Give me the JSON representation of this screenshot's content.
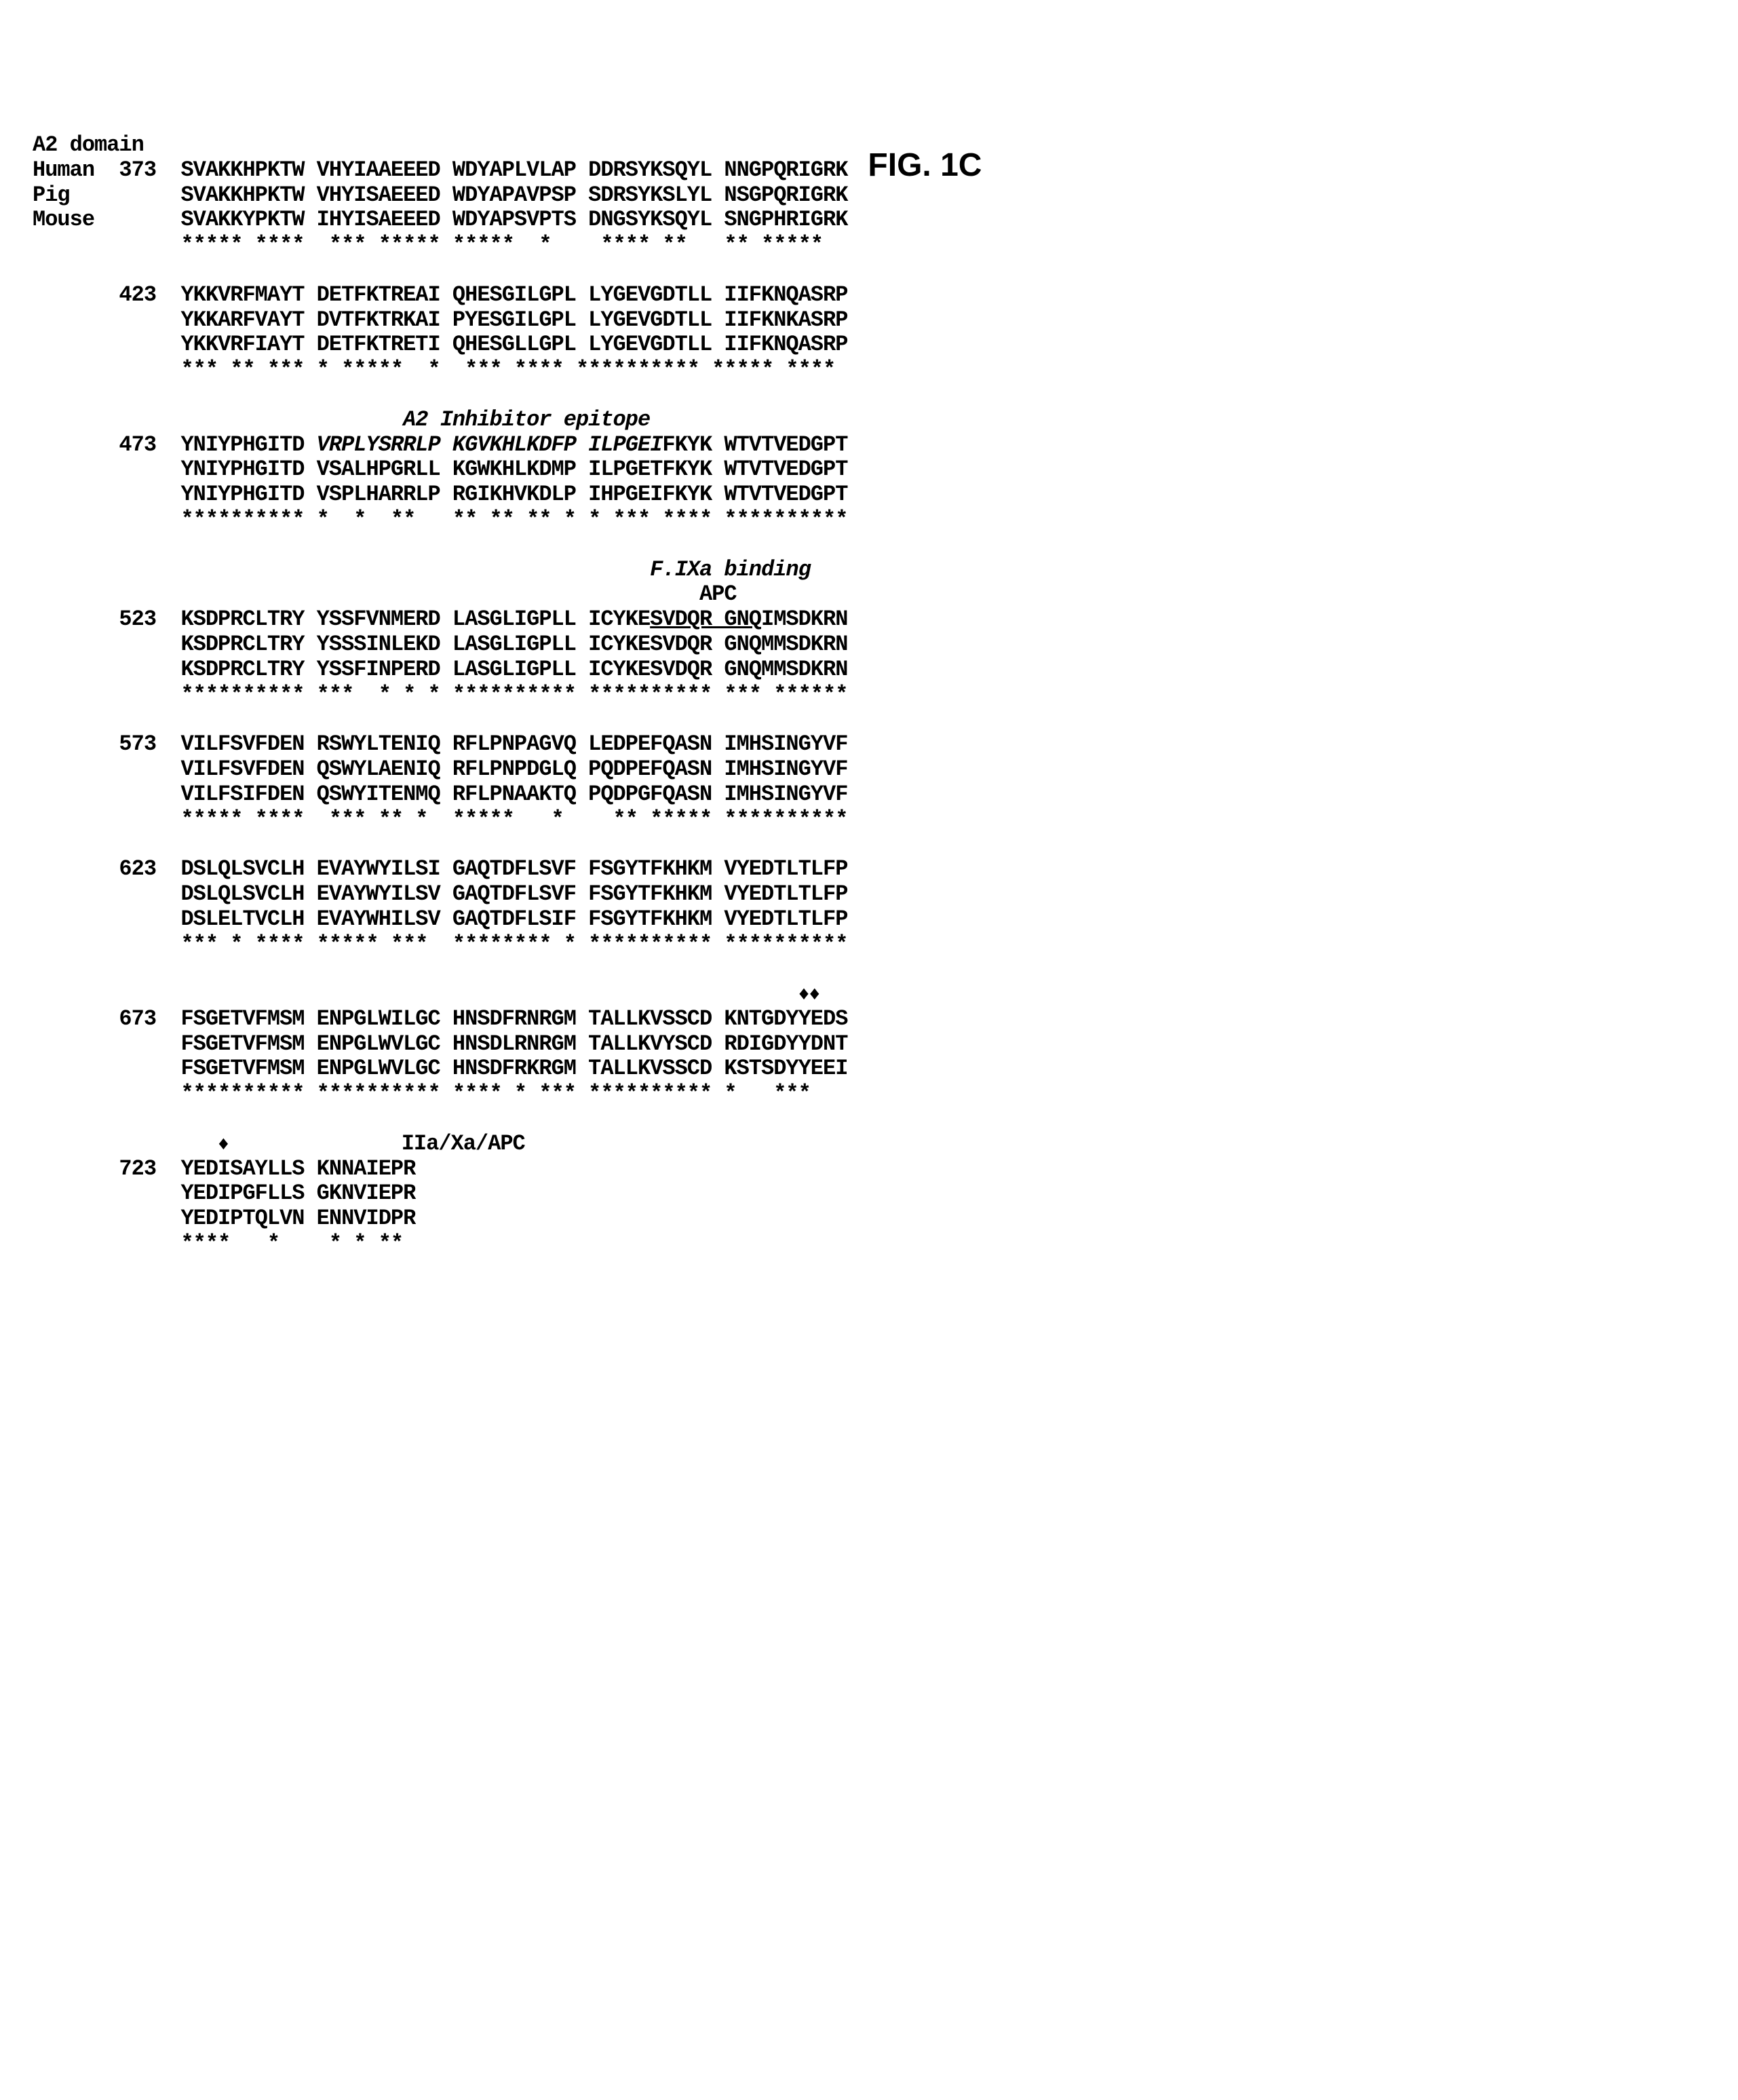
{
  "fig_label": "FIG. 1C",
  "header_domain": "A2 domain",
  "species": [
    "Human",
    "Pig",
    "Mouse"
  ],
  "blocks": [
    {
      "start": "373",
      "rows": [
        "SVAKKHPKTW VHYIAAEEED WDYAPLVLAP DDRSYKSQYL NNGPQRIGRK",
        "SVAKKHPKTW VHYISAEEED WDYAPAVPSP SDRSYKSLYL NSGPQRIGRK",
        "SVAKKYPKTW IHYISAEEED WDYAPSVPTS DNGSYKSQYL SNGPHRIGRK"
      ],
      "cons": "***** ****  *** ***** *****  *    **** **   ** *****"
    },
    {
      "start": "423",
      "rows": [
        "YKKVRFMAYT DETFKTREAI QHESGILGPL LYGEVGDTLL IIFKNQASRP",
        "YKKARFVAYT DVTFKTRKAI PYESGILGPL LYGEVGDTLL IIFKNKASRP",
        "YKKVRFIAYT DETFKTRETI QHESGLLGPL LYGEVGDTLL IIFKNQASRP"
      ],
      "cons": "*** ** *** * *****  *  *** **** ********** ***** ****"
    },
    {
      "start": "473",
      "annotation_top": "A2 Inhibitor epitope",
      "rows_special": [
        {
          "prefix": "YNIYPHGITD ",
          "italic": "VRPLYSRRLP KGVKHLKDFP ILPGEI",
          "suffix": "FKYK WTVTVEDGPT"
        },
        {
          "text": "YNIYPHGITD VSALHPGRLL KGWKHLKDMP ILPGETFKYK WTVTVEDGPT"
        },
        {
          "text": "YNIYPHGITD VSPLHARRLP RGIKHVKDLP IHPGEIFKYK WTVTVEDGPT"
        }
      ],
      "cons": "********** *  *  **   ** ** ** * * *** **** **********"
    },
    {
      "start": "523",
      "annotation_top_right": "F.IXa binding",
      "annotation_top_right2": "APC",
      "rows_special": [
        {
          "prefix": "KSDPRCLTRY YSSFVNMERD LASGLIGPLL ICYKE",
          "underline": "SVDQR GNQ",
          "suffix": "IMSDKRN"
        },
        {
          "text": "KSDPRCLTRY YSSSINLEKD LASGLIGPLL ICYKESVDQR GNQMMSDKRN"
        },
        {
          "text": "KSDPRCLTRY YSSFINPERD LASGLIGPLL ICYKESVDQR GNQMMSDKRN"
        }
      ],
      "cons": "********** ***  * * * ********** ********** *** ******"
    },
    {
      "start": "573",
      "rows": [
        "VILFSVFDEN RSWYLTENIQ RFLPNPAGVQ LEDPEFQASN IMHSINGYVF",
        "VILFSVFDEN QSWYLAENIQ RFLPNPDGLQ PQDPEFQASN IMHSINGYVF",
        "VILFSIFDEN QSWYITENMQ RFLPNAAKTQ PQDPGFQASN IMHSINGYVF"
      ],
      "cons": "***** ****  *** ** *  *****   *    ** ***** **********"
    },
    {
      "start": "623",
      "rows": [
        "DSLQLSVCLH EVAYWYILSI GAQTDFLSVF FSGYTFKHKM VYEDTLTLFP",
        "DSLQLSVCLH EVAYWYILSV GAQTDFLSVF FSGYTFKHKM VYEDTLTLFP",
        "DSLELTVCLH EVAYWHILSV GAQTDFLSIF FSGYTFKHKM VYEDTLTLFP"
      ],
      "cons": "*** * **** ***** ***  ******** * ********** **********"
    },
    {
      "start": "673",
      "annotation_diamonds_right": "♦♦",
      "rows": [
        "FSGETVFMSM ENPGLWILGC HNSDFRNRGM TALLKVSSCD KNTGDYYEDS",
        "FSGETVFMSM ENPGLWVLGC HNSDLRNRGM TALLKVYSCD RDIGDYYDNT",
        "FSGETVFMSM ENPGLWVLGC HNSDFRKRGM TALLKVSSCD KSTSDYYEEI"
      ],
      "cons": "********** ********** **** * *** ********** *   ***"
    },
    {
      "start": "723",
      "annotation_diamond_left": "♦",
      "annotation_top": "IIa/Xa/APC",
      "rows": [
        "YEDISAYLLS KNNAIEPR",
        "YEDIPGFLLS GKNVIEPR",
        "YEDIPTQLVN ENNVIDPR"
      ],
      "cons": "****   *    * * **"
    }
  ]
}
